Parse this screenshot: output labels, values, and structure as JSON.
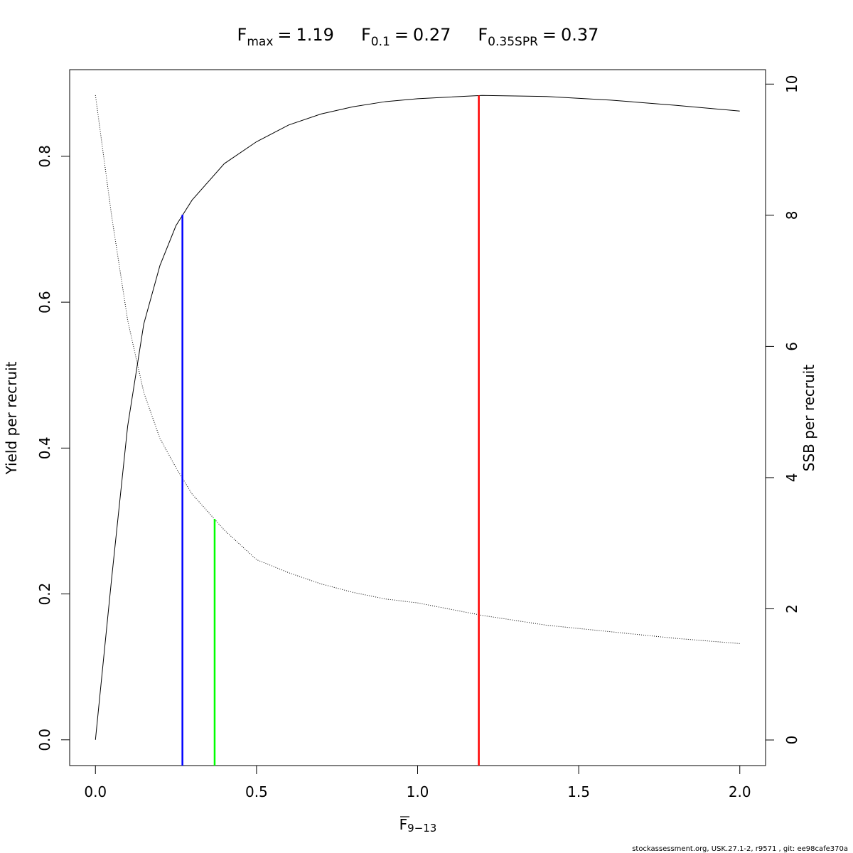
{
  "chart_data": {
    "type": "line",
    "title_parts": [
      {
        "symbol": "F",
        "subscript": "max",
        "relation": "=",
        "value": 1.19
      },
      {
        "symbol": "F",
        "subscript": "0.1",
        "relation": "=",
        "value": 0.27
      },
      {
        "symbol": "F",
        "subscript": "0.35SPR",
        "relation": "=",
        "value": 0.37
      }
    ],
    "xlabel": {
      "symbol": "F",
      "subscript": "9−13"
    },
    "ylabel": "Yield per recruit",
    "y2label": "SSB per recruit",
    "footer": "stockassessment.org, USK.27.1-2, r9571 , git: ee98cafe370a",
    "x": [
      0,
      0.05,
      0.1,
      0.15,
      0.2,
      0.25,
      0.3,
      0.4,
      0.5,
      0.6,
      0.7,
      0.8,
      0.9,
      1.0,
      1.2,
      1.4,
      1.6,
      1.8,
      2.0
    ],
    "series": [
      {
        "color": "#000000",
        "line_style": "solid",
        "values": [
          0,
          0.22,
          0.43,
          0.57,
          0.65,
          0.705,
          0.74,
          0.79,
          0.82,
          0.843,
          0.858,
          0.868,
          0.875,
          0.879,
          0.8835,
          0.882,
          0.877,
          0.87,
          0.862
        ]
      },
      {
        "color": "#000000",
        "line_style": "dotted",
        "axis": "y2",
        "values": [
          9.83,
          8.0,
          6.4,
          5.3,
          4.6,
          4.15,
          3.75,
          3.2,
          2.75,
          2.55,
          2.38,
          2.25,
          2.15,
          2.09,
          1.9,
          1.75,
          1.65,
          1.55,
          1.47
        ]
      }
    ],
    "reference_lines": [
      {
        "x": 1.19,
        "top": 0.8835,
        "axis": "y",
        "color": "#ff0000"
      },
      {
        "x": 0.27,
        "top": 0.72,
        "axis": "y",
        "color": "#0000ff"
      },
      {
        "x": 0.37,
        "top": 3.37,
        "axis": "y2",
        "color": "#00ff00"
      }
    ],
    "xlim": [
      -0.08,
      2.08
    ],
    "xticks": [
      {
        "value": 0,
        "label": "0.0"
      },
      {
        "value": 0.5,
        "label": "0.5"
      },
      {
        "value": 1,
        "label": "1.0"
      },
      {
        "value": 1.5,
        "label": "1.5"
      },
      {
        "value": 2,
        "label": "2.0"
      }
    ],
    "ylim": [
      -0.0353,
      0.9188
    ],
    "yticks": [
      {
        "value": 0,
        "label": "0.0"
      },
      {
        "value": 0.2,
        "label": "0.2"
      },
      {
        "value": 0.4,
        "label": "0.4"
      },
      {
        "value": 0.6,
        "label": "0.6"
      },
      {
        "value": 0.8,
        "label": "0.8"
      }
    ],
    "y2lim": [
      -0.39,
      10.22
    ],
    "y2ticks": [
      0,
      2,
      4,
      6,
      8,
      10
    ]
  }
}
